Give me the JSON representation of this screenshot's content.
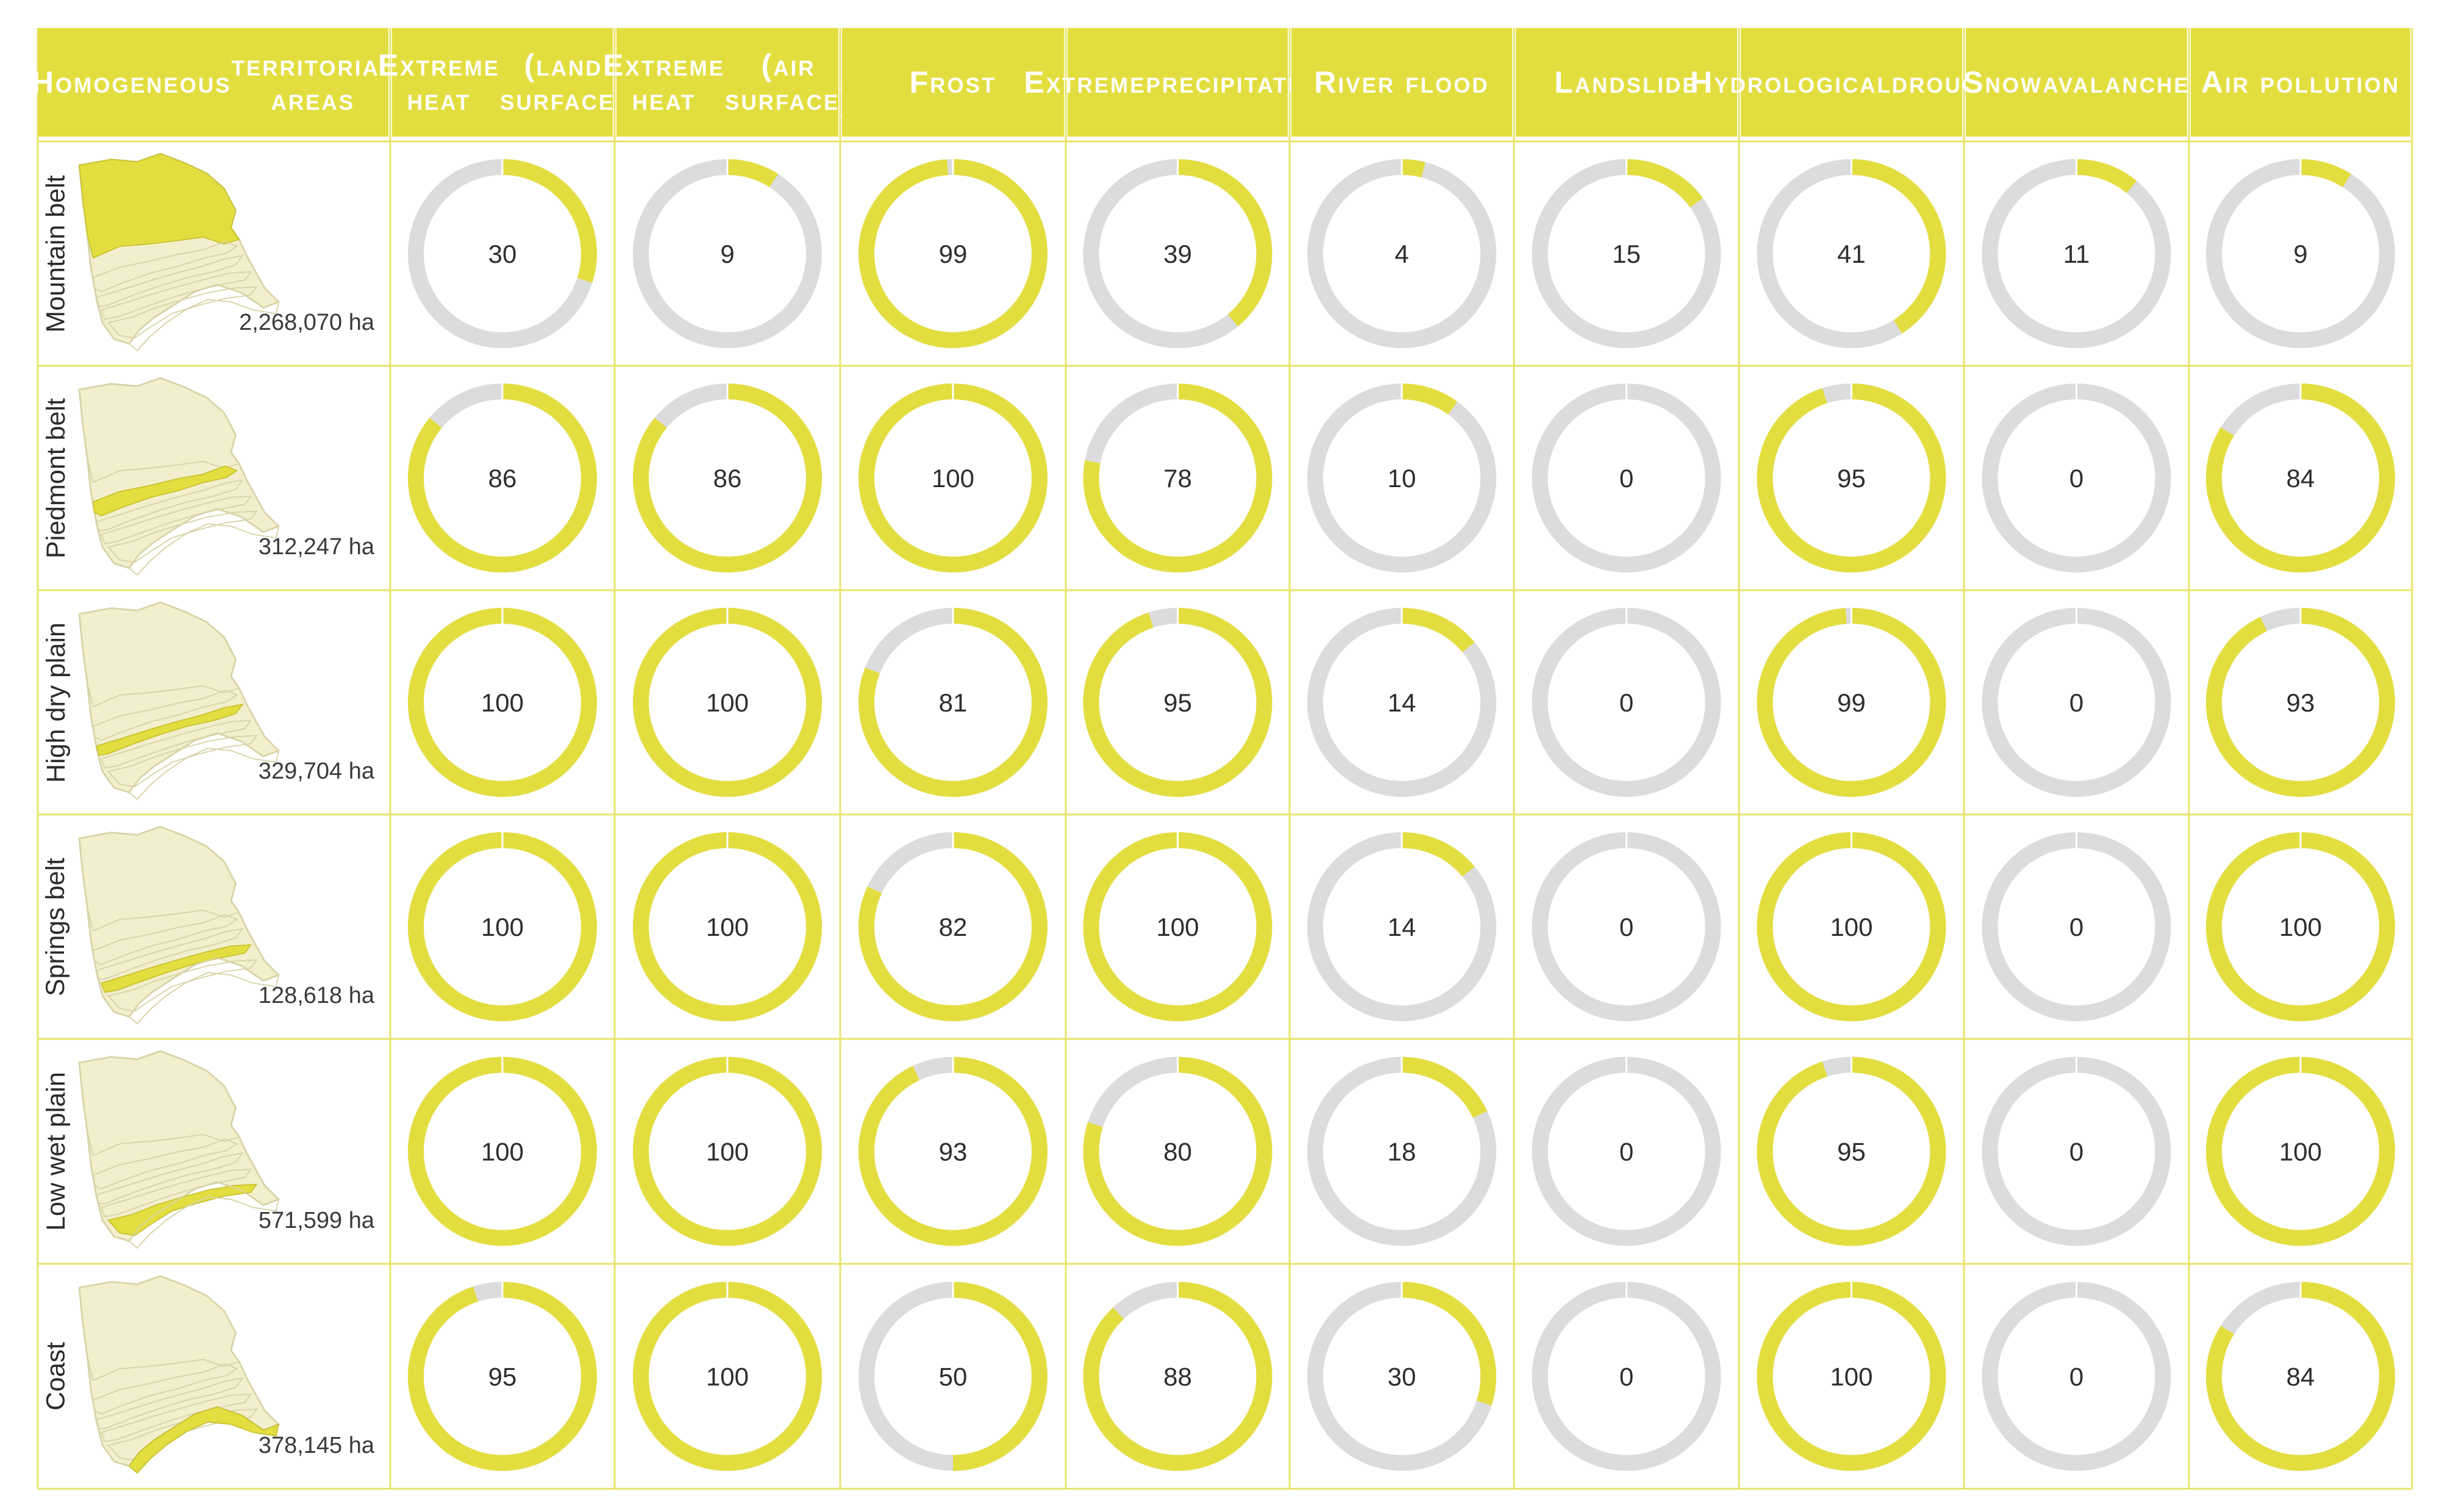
{
  "chart_data": {
    "type": "table",
    "columns": [
      {
        "name": "Homogeneous territorial areas",
        "lines": [
          "Homogeneous",
          "territorial areas"
        ]
      },
      {
        "name": "Extreme heat (land surface)",
        "lines": [
          "Extreme heat",
          "(land surface)"
        ]
      },
      {
        "name": "Extreme heat (air surface)",
        "lines": [
          "Extreme heat",
          "(air surface)"
        ]
      },
      {
        "name": "Frost",
        "lines": [
          "Frost"
        ]
      },
      {
        "name": "Extreme precipitation",
        "lines": [
          "Extreme",
          "precipitation"
        ]
      },
      {
        "name": "River flood",
        "lines": [
          "River flood"
        ]
      },
      {
        "name": "Landslide",
        "lines": [
          "Landslide"
        ]
      },
      {
        "name": "Hydrological drought",
        "lines": [
          "Hydrological",
          "drought"
        ]
      },
      {
        "name": "Snow avalanche",
        "lines": [
          "Snow",
          "avalanche"
        ]
      },
      {
        "name": "Air pollution",
        "lines": [
          "Air pollution"
        ]
      }
    ],
    "rows": [
      {
        "name": "Mountain belt",
        "area": "2,268,070 ha",
        "values": [
          30,
          9,
          99,
          39,
          4,
          15,
          41,
          11,
          9
        ]
      },
      {
        "name": "Piedmont belt",
        "area": "312,247 ha",
        "values": [
          86,
          86,
          100,
          78,
          10,
          0,
          95,
          0,
          84
        ]
      },
      {
        "name": "High dry plain",
        "area": "329,704 ha",
        "values": [
          100,
          100,
          81,
          95,
          14,
          0,
          99,
          0,
          93
        ]
      },
      {
        "name": "Springs belt",
        "area": "128,618 ha",
        "values": [
          100,
          100,
          82,
          100,
          14,
          0,
          100,
          0,
          100
        ]
      },
      {
        "name": "Low wet plain",
        "area": "571,599 ha",
        "values": [
          100,
          100,
          93,
          80,
          18,
          0,
          95,
          0,
          100
        ]
      },
      {
        "name": "Coast",
        "area": "378,145 ha",
        "values": [
          95,
          100,
          50,
          88,
          30,
          0,
          100,
          0,
          84
        ]
      }
    ],
    "value_range": [
      0,
      100
    ],
    "colors": {
      "accent": "#e3de3f",
      "ring_bg": "#dcdcdc",
      "grid_line": "#e8e46a",
      "map_base": "#f3efcd",
      "map_outline": "#d8d4a8",
      "header_text": "#ffffff"
    }
  }
}
